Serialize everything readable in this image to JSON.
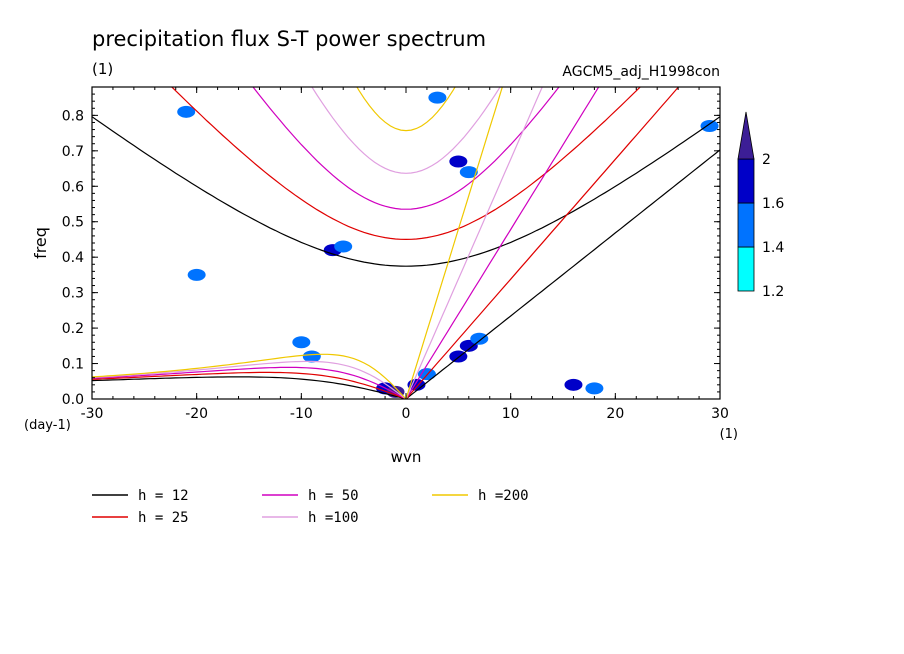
{
  "chart_data": {
    "type": "heatmap",
    "title": "precipitation flux S-T power spectrum",
    "units_label": "(1)",
    "run_label": "AGCM5_adj_H1998con",
    "xlabel": "wvn",
    "ylabel": "freq",
    "x_units": "(1)",
    "y_units": "(day-1)",
    "xlim": [
      -30,
      30
    ],
    "ylim": [
      0,
      0.88
    ],
    "x_ticks": [
      -30,
      -20,
      -10,
      0,
      10,
      20,
      30
    ],
    "x_tick_labels": [
      "-30",
      "-20",
      "-10",
      "0",
      "10",
      "20",
      "30"
    ],
    "y_ticks": [
      0,
      0.1,
      0.2,
      0.3,
      0.4,
      0.5,
      0.6,
      0.7,
      0.8
    ],
    "y_tick_labels": [
      "0.0",
      "0.1",
      "0.2",
      "0.3",
      "0.4",
      "0.5",
      "0.6",
      "0.7",
      "0.8"
    ],
    "colorbar": {
      "levels": [
        1.2,
        1.4,
        1.6,
        2
      ],
      "labels": [
        "1.2",
        "1.4",
        "1.6",
        "2"
      ],
      "colors": [
        "#00ffff",
        "#0073ff",
        "#0000c8",
        "#3c1e96"
      ]
    },
    "shaded_regions": [
      {
        "x": -2,
        "y": 0.03,
        "level": 1.6
      },
      {
        "x": -1,
        "y": 0.02,
        "level": 2
      },
      {
        "x": 1,
        "y": 0.04,
        "level": 1.6
      },
      {
        "x": 2,
        "y": 0.07,
        "level": 1.4
      },
      {
        "x": 5,
        "y": 0.12,
        "level": 1.6
      },
      {
        "x": 6,
        "y": 0.15,
        "level": 1.6
      },
      {
        "x": 7,
        "y": 0.17,
        "level": 1.4
      },
      {
        "x": -9,
        "y": 0.12,
        "level": 1.4
      },
      {
        "x": -10,
        "y": 0.16,
        "level": 1.4
      },
      {
        "x": -7,
        "y": 0.42,
        "level": 1.6
      },
      {
        "x": -6,
        "y": 0.43,
        "level": 1.4
      },
      {
        "x": 16,
        "y": 0.04,
        "level": 1.6
      },
      {
        "x": 18,
        "y": 0.03,
        "level": 1.4
      },
      {
        "x": 5,
        "y": 0.67,
        "level": 1.6
      },
      {
        "x": 6,
        "y": 0.64,
        "level": 1.4
      },
      {
        "x": -20,
        "y": 0.35,
        "level": 1.4
      },
      {
        "x": -21,
        "y": 0.81,
        "level": 1.4
      },
      {
        "x": 29,
        "y": 0.77,
        "level": 1.4
      },
      {
        "x": 3,
        "y": 0.85,
        "level": 1.4
      }
    ],
    "dispersion_curves": [
      {
        "label": "h = 12",
        "h": 12,
        "color": "#000000",
        "style": "solid"
      },
      {
        "label": "h = 25",
        "h": 25,
        "color": "#e00000",
        "style": "solid"
      },
      {
        "label": "h = 50",
        "h": 50,
        "color": "#d000c0",
        "style": "solid"
      },
      {
        "label": "h =100",
        "h": 100,
        "color": "#e0a0e0",
        "style": "solid"
      },
      {
        "label": "h =200",
        "h": 200,
        "color": "#f0c800",
        "style": "solid"
      }
    ],
    "grid": false,
    "legend_position": "bottom"
  }
}
